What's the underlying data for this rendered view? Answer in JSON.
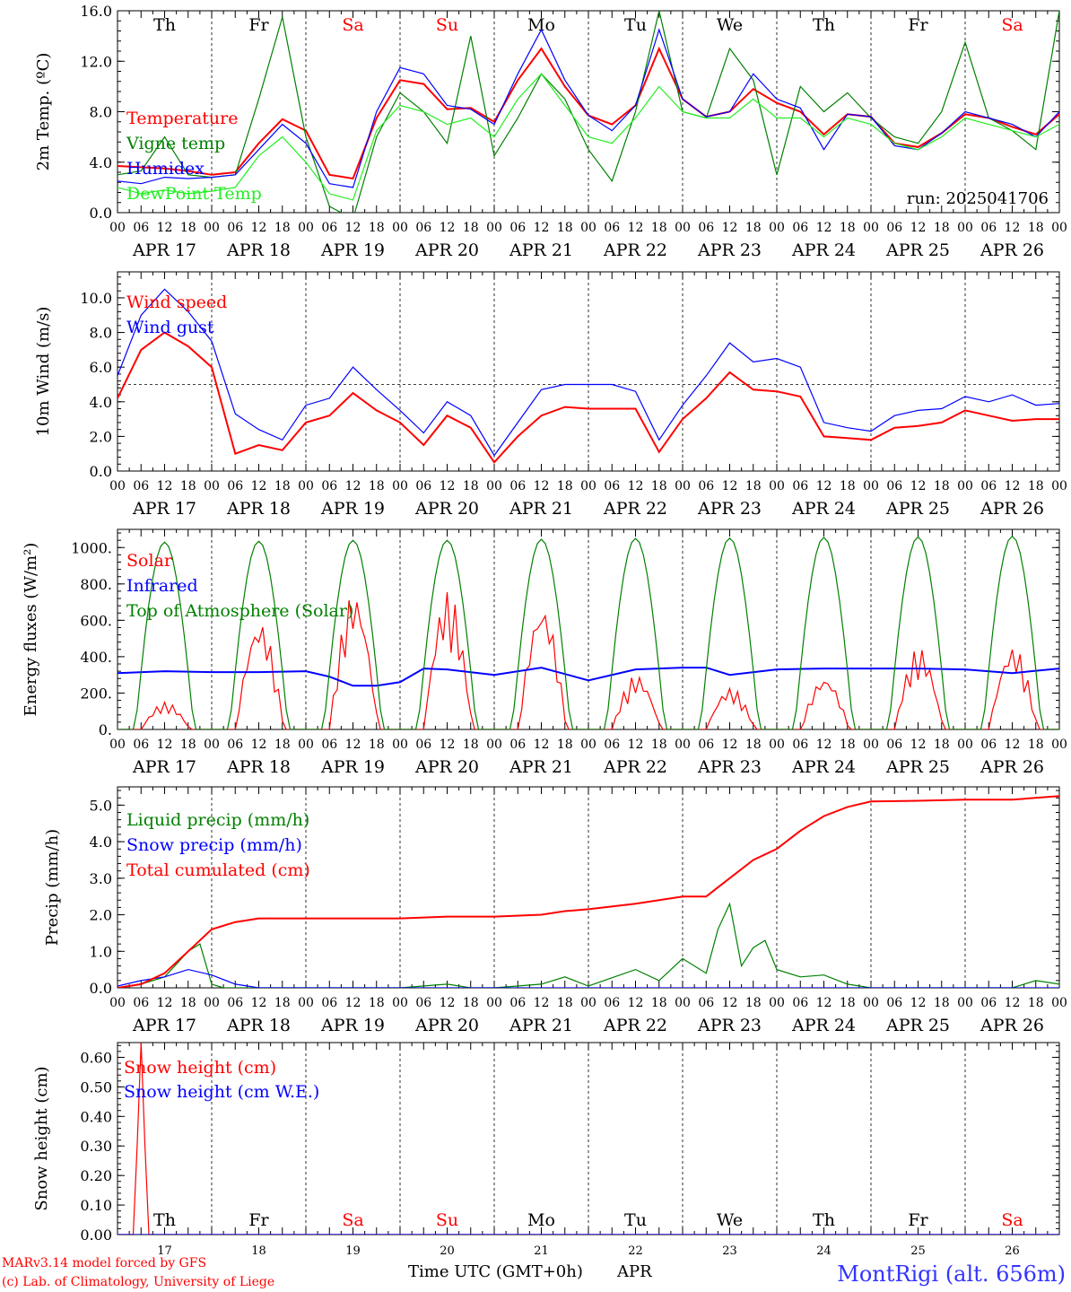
{
  "meta": {
    "x_axis_title": "Time UTC (GMT+0h)",
    "month": "APR",
    "credit_lines": [
      "MARv3.14 model forced by GFS",
      "(c) Lab. of Climatology, University of Liege"
    ],
    "station": "MontRigi (alt. 656m)"
  },
  "colors": {
    "red": "#ff0000",
    "green": "#008000",
    "blue": "#0000ff",
    "lightgreen": "#22ee22",
    "axis": "#000000",
    "weekend": "#ff0000"
  },
  "chart_data": [
    {
      "id": "temperature",
      "type": "line",
      "ylabel": "2m Temp. (ºC)",
      "ylim": [
        0,
        16
      ],
      "yticks": [
        "0.0",
        "4.0",
        "8.0",
        "12.0",
        "16.0"
      ],
      "ytick_values": [
        0,
        4,
        8,
        12,
        16
      ],
      "annotation": "run: 2025041706",
      "day_labels": [
        "Th",
        "Fr",
        "Sa",
        "Su",
        "Mo",
        "Tu",
        "We",
        "Th",
        "Fr",
        "Sa"
      ],
      "x_hours_step": 6,
      "series": [
        {
          "name": "Temperature",
          "color": "#ff0000",
          "x": [
            0,
            6,
            12,
            18,
            24,
            30,
            36,
            42,
            48,
            54,
            60,
            66,
            72,
            78,
            84,
            90,
            96,
            102,
            108,
            114,
            120,
            126,
            132,
            138,
            144,
            150,
            156,
            162,
            168,
            174,
            180,
            186,
            192,
            198,
            204,
            210,
            216,
            222,
            228,
            234,
            240
          ],
          "values": [
            3.7,
            3.6,
            3.5,
            3.3,
            3.0,
            3.2,
            5.5,
            7.4,
            6.5,
            3.0,
            2.7,
            7.5,
            10.5,
            10.2,
            8.2,
            8.3,
            7.2,
            10.5,
            13.0,
            10.0,
            7.7,
            7.0,
            8.5,
            13.0,
            9.0,
            7.6,
            8.0,
            9.8,
            8.7,
            8.0,
            6.2,
            7.8,
            7.6,
            5.5,
            5.2,
            6.3,
            7.8,
            7.5,
            6.8,
            6.2,
            7.8
          ]
        },
        {
          "name": "Vigne temp",
          "color": "#008000",
          "x": [
            0,
            6,
            12,
            18,
            24,
            30,
            36,
            42,
            48,
            54,
            60,
            66,
            72,
            78,
            84,
            90,
            96,
            102,
            108,
            114,
            120,
            126,
            132,
            138,
            144,
            150,
            156,
            162,
            168,
            174,
            180,
            186,
            192,
            198,
            204,
            210,
            216,
            222,
            228,
            234,
            240
          ],
          "values": [
            3.0,
            3.3,
            6.0,
            3.0,
            2.8,
            3.0,
            9.0,
            15.5,
            6.0,
            0.5,
            -0.5,
            6.0,
            9.5,
            8.0,
            5.5,
            14.0,
            4.5,
            7.5,
            11.0,
            9.0,
            5.0,
            2.5,
            8.0,
            16.0,
            8.0,
            7.5,
            13.0,
            10.5,
            3.0,
            10.0,
            8.0,
            9.5,
            7.5,
            6.0,
            5.5,
            8.0,
            13.5,
            7.5,
            6.5,
            5.0,
            16.0
          ]
        },
        {
          "name": "Humidex",
          "color": "#0000ff",
          "x": [
            0,
            6,
            12,
            18,
            24,
            30,
            36,
            42,
            48,
            54,
            60,
            66,
            72,
            78,
            84,
            90,
            96,
            102,
            108,
            114,
            120,
            126,
            132,
            138,
            144,
            150,
            156,
            162,
            168,
            174,
            180,
            186,
            192,
            198,
            204,
            210,
            216,
            222,
            228,
            234,
            240
          ],
          "values": [
            2.5,
            2.3,
            2.8,
            2.7,
            2.8,
            3.0,
            5.0,
            7.0,
            5.5,
            2.3,
            2.0,
            8.0,
            11.5,
            11.0,
            8.5,
            8.2,
            7.0,
            11.0,
            14.5,
            10.5,
            7.7,
            6.5,
            8.5,
            14.5,
            9.0,
            7.6,
            8.0,
            11.0,
            9.0,
            8.3,
            5.0,
            7.8,
            7.6,
            5.3,
            5.0,
            6.3,
            8.0,
            7.5,
            7.0,
            6.0,
            8.0
          ]
        },
        {
          "name": "DewPoint Temp",
          "color": "#22ee22",
          "x": [
            0,
            6,
            12,
            18,
            24,
            30,
            36,
            42,
            48,
            54,
            60,
            66,
            72,
            78,
            84,
            90,
            96,
            102,
            108,
            114,
            120,
            126,
            132,
            138,
            144,
            150,
            156,
            162,
            168,
            174,
            180,
            186,
            192,
            198,
            204,
            210,
            216,
            222,
            228,
            234,
            240
          ],
          "values": [
            2.0,
            1.5,
            1.8,
            1.5,
            1.7,
            2.0,
            4.5,
            6.0,
            4.0,
            1.5,
            1.0,
            6.5,
            8.5,
            8.0,
            7.0,
            7.5,
            6.0,
            9.0,
            11.0,
            8.5,
            6.0,
            5.5,
            7.5,
            10.0,
            8.0,
            7.5,
            7.5,
            9.0,
            7.5,
            7.5,
            6.0,
            7.5,
            7.0,
            5.5,
            5.0,
            6.0,
            7.5,
            7.0,
            6.5,
            6.0,
            7.0
          ]
        }
      ]
    },
    {
      "id": "wind",
      "type": "line",
      "ylabel": "10m Wind (m/s)",
      "ylim": [
        0,
        11.5
      ],
      "yticks": [
        "0.0",
        "2.0",
        "4.0",
        "6.0",
        "8.0",
        "10.0"
      ],
      "ytick_values": [
        0,
        2,
        4,
        6,
        8,
        10
      ],
      "reference_line": 5,
      "series": [
        {
          "name": "Wind speed",
          "color": "#ff0000",
          "x": [
            0,
            6,
            12,
            18,
            24,
            30,
            36,
            42,
            48,
            54,
            60,
            66,
            72,
            78,
            84,
            90,
            96,
            102,
            108,
            114,
            120,
            126,
            132,
            138,
            144,
            150,
            156,
            162,
            168,
            174,
            180,
            186,
            192,
            198,
            204,
            210,
            216,
            222,
            228,
            234,
            240
          ],
          "values": [
            4.2,
            7.0,
            8.0,
            7.2,
            6.0,
            1.0,
            1.5,
            1.2,
            2.8,
            3.2,
            4.5,
            3.5,
            2.8,
            1.5,
            3.2,
            2.5,
            0.5,
            2.0,
            3.2,
            3.7,
            3.6,
            3.6,
            3.6,
            1.1,
            3.0,
            4.2,
            5.7,
            4.7,
            4.6,
            4.3,
            2.0,
            1.9,
            1.8,
            2.5,
            2.6,
            2.8,
            3.5,
            3.2,
            2.9,
            3.0,
            3.0
          ]
        },
        {
          "name": "Wind gust",
          "color": "#0000ff",
          "x": [
            0,
            6,
            12,
            18,
            24,
            30,
            36,
            42,
            48,
            54,
            60,
            66,
            72,
            78,
            84,
            90,
            96,
            102,
            108,
            114,
            120,
            126,
            132,
            138,
            144,
            150,
            156,
            162,
            168,
            174,
            180,
            186,
            192,
            198,
            204,
            210,
            216,
            222,
            228,
            234,
            240
          ],
          "values": [
            5.5,
            9.0,
            10.5,
            9.2,
            7.5,
            3.3,
            2.4,
            1.8,
            3.8,
            4.2,
            6.0,
            4.7,
            3.5,
            2.2,
            4.0,
            3.2,
            0.9,
            2.8,
            4.7,
            5.0,
            5.0,
            5.0,
            4.6,
            1.8,
            3.8,
            5.5,
            7.4,
            6.3,
            6.5,
            6.0,
            2.8,
            2.5,
            2.3,
            3.2,
            3.5,
            3.6,
            4.3,
            4.0,
            4.4,
            3.8,
            3.9
          ]
        }
      ]
    },
    {
      "id": "energy",
      "type": "line",
      "ylabel": "Energy fluxes (W/m²)",
      "ylim": [
        0,
        1100
      ],
      "yticks": [
        "0.",
        "200.",
        "400.",
        "600.",
        "800.",
        "1000."
      ],
      "ytick_values": [
        0,
        200,
        400,
        600,
        800,
        1000
      ],
      "series": [
        {
          "name": "Solar",
          "color": "#ff0000",
          "peaks": [
            150,
            600,
            760,
            760,
            690,
            300,
            230,
            290,
            450,
            460
          ]
        },
        {
          "name": "Infrared",
          "color": "#0000ff",
          "x": [
            0,
            12,
            24,
            36,
            48,
            54,
            60,
            66,
            72,
            78,
            84,
            96,
            108,
            120,
            132,
            144,
            150,
            156,
            168,
            180,
            192,
            204,
            216,
            228,
            240
          ],
          "values": [
            310,
            320,
            315,
            315,
            320,
            290,
            240,
            240,
            260,
            335,
            330,
            300,
            340,
            270,
            330,
            340,
            340,
            300,
            330,
            335,
            335,
            335,
            330,
            310,
            335
          ]
        },
        {
          "name": "Top of Atmosphere (Solar)",
          "color": "#008000",
          "peaks": [
            1030,
            1035,
            1040,
            1040,
            1045,
            1050,
            1052,
            1055,
            1058,
            1062
          ]
        }
      ]
    },
    {
      "id": "precip",
      "type": "line",
      "ylabel": "Precip (mm/h)",
      "ylim": [
        0,
        5.5
      ],
      "yticks": [
        "0.0",
        "1.0",
        "2.0",
        "3.0",
        "4.0",
        "5.0"
      ],
      "ytick_values": [
        0,
        1,
        2,
        3,
        4,
        5
      ],
      "series": [
        {
          "name": "Liquid precip (mm/h)",
          "color": "#008000",
          "x": [
            0,
            6,
            12,
            18,
            21,
            24,
            27,
            30,
            36,
            48,
            72,
            84,
            90,
            96,
            108,
            114,
            120,
            132,
            138,
            144,
            150,
            153,
            156,
            159,
            162,
            165,
            168,
            174,
            180,
            186,
            192,
            204,
            216,
            228,
            234,
            240
          ],
          "values": [
            0,
            0.1,
            0.3,
            1.0,
            1.2,
            0.1,
            0,
            0,
            0,
            0,
            0,
            0.1,
            0,
            0,
            0.1,
            0.3,
            0.05,
            0.5,
            0.2,
            0.8,
            0.4,
            1.6,
            2.3,
            0.6,
            1.1,
            1.3,
            0.5,
            0.3,
            0.35,
            0.1,
            0,
            0,
            0,
            0,
            0.2,
            0.1
          ]
        },
        {
          "name": "Snow precip (mm/h)",
          "color": "#0000ff",
          "x": [
            0,
            6,
            12,
            18,
            24,
            30,
            36,
            48,
            72,
            96,
            120,
            144,
            168,
            192,
            216,
            240
          ],
          "values": [
            0.05,
            0.2,
            0.3,
            0.5,
            0.35,
            0.1,
            0,
            0,
            0,
            0,
            0,
            0,
            0,
            0,
            0,
            0
          ]
        },
        {
          "name": "Total cumulated (cm)",
          "color": "#ff0000",
          "x": [
            0,
            6,
            12,
            18,
            24,
            30,
            36,
            48,
            72,
            84,
            96,
            108,
            114,
            120,
            132,
            144,
            150,
            156,
            162,
            168,
            174,
            180,
            186,
            192,
            204,
            216,
            228,
            240
          ],
          "values": [
            0,
            0.1,
            0.4,
            1.0,
            1.6,
            1.8,
            1.9,
            1.9,
            1.9,
            1.95,
            1.95,
            2.0,
            2.1,
            2.15,
            2.3,
            2.5,
            2.5,
            3.0,
            3.5,
            3.8,
            4.3,
            4.7,
            4.95,
            5.1,
            5.12,
            5.15,
            5.15,
            5.25
          ]
        }
      ]
    },
    {
      "id": "snow",
      "type": "line",
      "ylabel": "Snow height (cm)",
      "ylim": [
        0,
        0.65
      ],
      "yticks": [
        "0.00",
        "0.10",
        "0.20",
        "0.30",
        "0.40",
        "0.50",
        "0.60"
      ],
      "ytick_values": [
        0,
        0.1,
        0.2,
        0.3,
        0.4,
        0.5,
        0.6
      ],
      "day_labels": [
        "Th",
        "Fr",
        "Sa",
        "Su",
        "Mo",
        "Tu",
        "We",
        "Th",
        "Fr",
        "Sa"
      ],
      "day_numbers": [
        "17",
        "18",
        "19",
        "20",
        "21",
        "22",
        "23",
        "24",
        "25",
        "26"
      ],
      "series": [
        {
          "name": "Snow height (cm)",
          "color": "#ff0000",
          "x": [
            0,
            4,
            5,
            6,
            7,
            8,
            240
          ],
          "values": [
            0,
            0,
            0.3,
            0.65,
            0.3,
            0,
            0
          ]
        },
        {
          "name": "Snow height (cm W.E.)",
          "color": "#0000ff",
          "x": [
            0,
            240
          ],
          "values": [
            0,
            0
          ]
        }
      ]
    }
  ],
  "x_axis": {
    "hour_labels": [
      "00",
      "06",
      "12",
      "18"
    ],
    "date_labels": [
      "APR 17",
      "APR 18",
      "APR 19",
      "APR 20",
      "APR 21",
      "APR 22",
      "APR 23",
      "APR 24",
      "APR 25",
      "APR 26"
    ],
    "weekend_days": [
      "Sa",
      "Su"
    ]
  }
}
